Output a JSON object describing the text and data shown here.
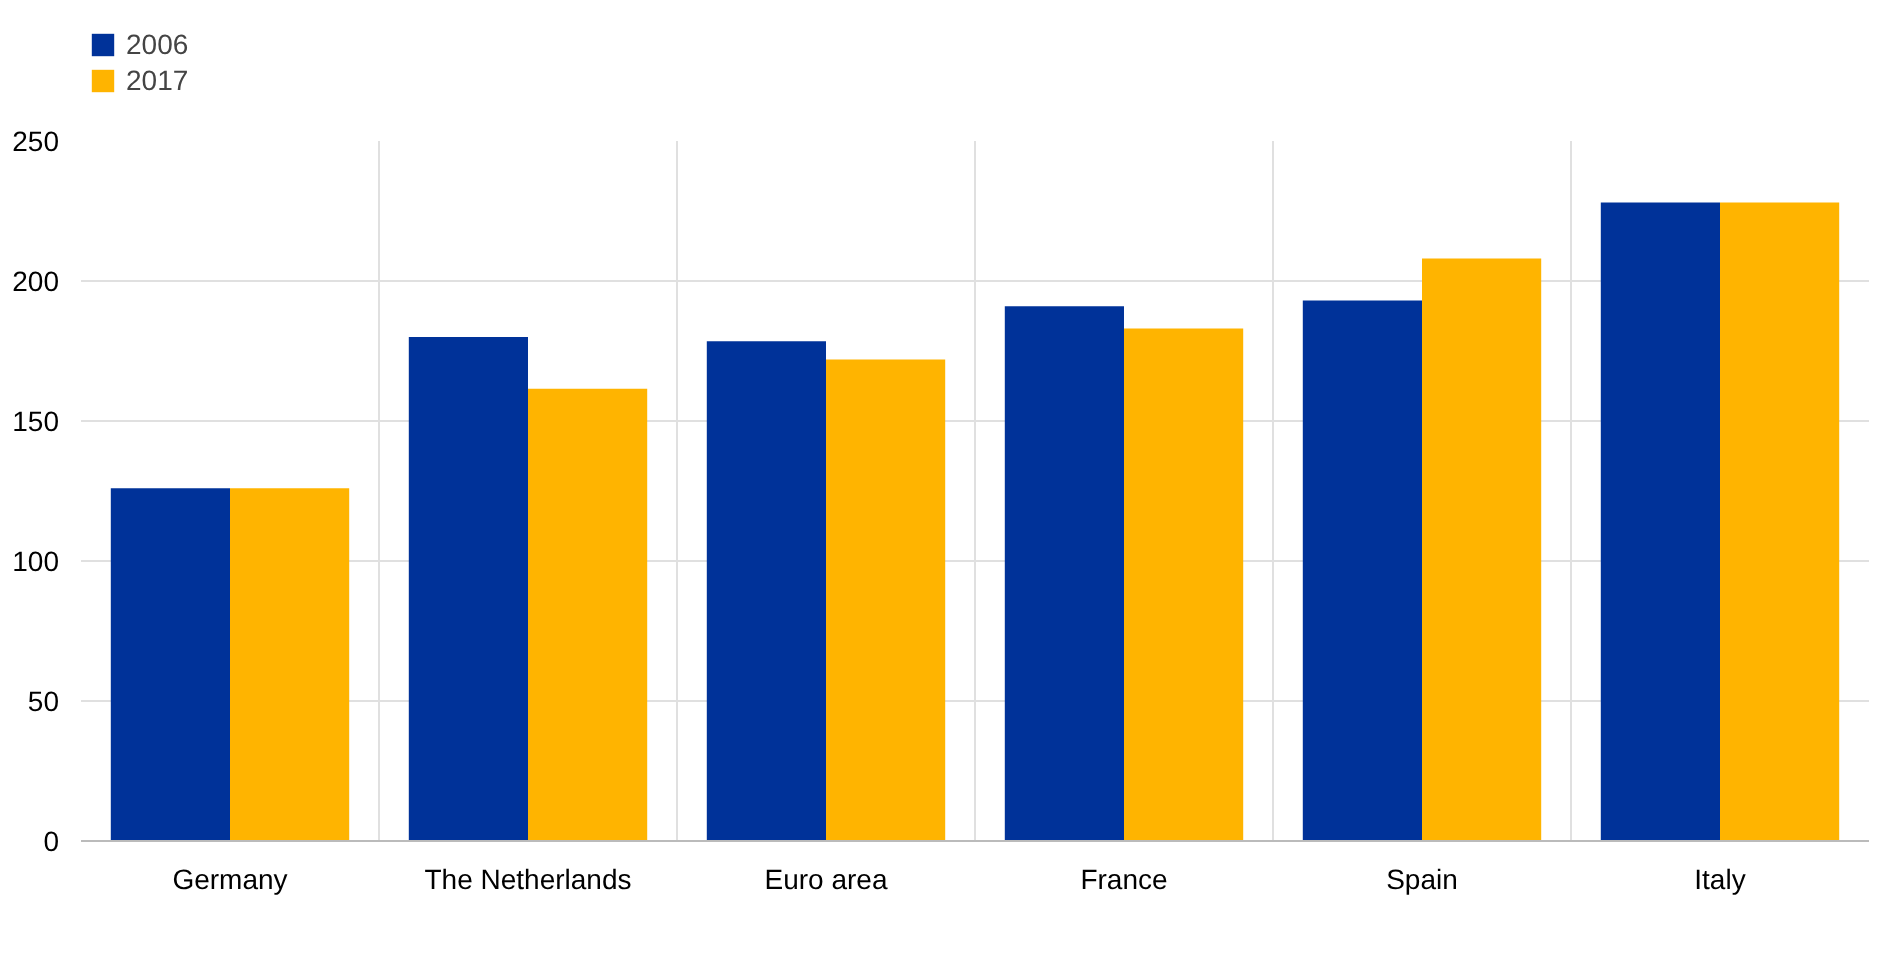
{
  "chart_data": {
    "type": "bar",
    "categories": [
      "Germany",
      "The Netherlands",
      "Euro area",
      "France",
      "Spain",
      "Italy"
    ],
    "series": [
      {
        "name": "2006",
        "color": "#003299",
        "values": [
          126,
          180,
          178.5,
          191,
          193,
          228
        ]
      },
      {
        "name": "2017",
        "color": "#ffb400",
        "values": [
          126,
          161.5,
          172,
          183,
          208,
          228
        ]
      }
    ],
    "ylim": [
      0,
      250
    ],
    "yticks": [
      0,
      50,
      100,
      150,
      200,
      250
    ],
    "grid": true,
    "legend": "top left"
  }
}
